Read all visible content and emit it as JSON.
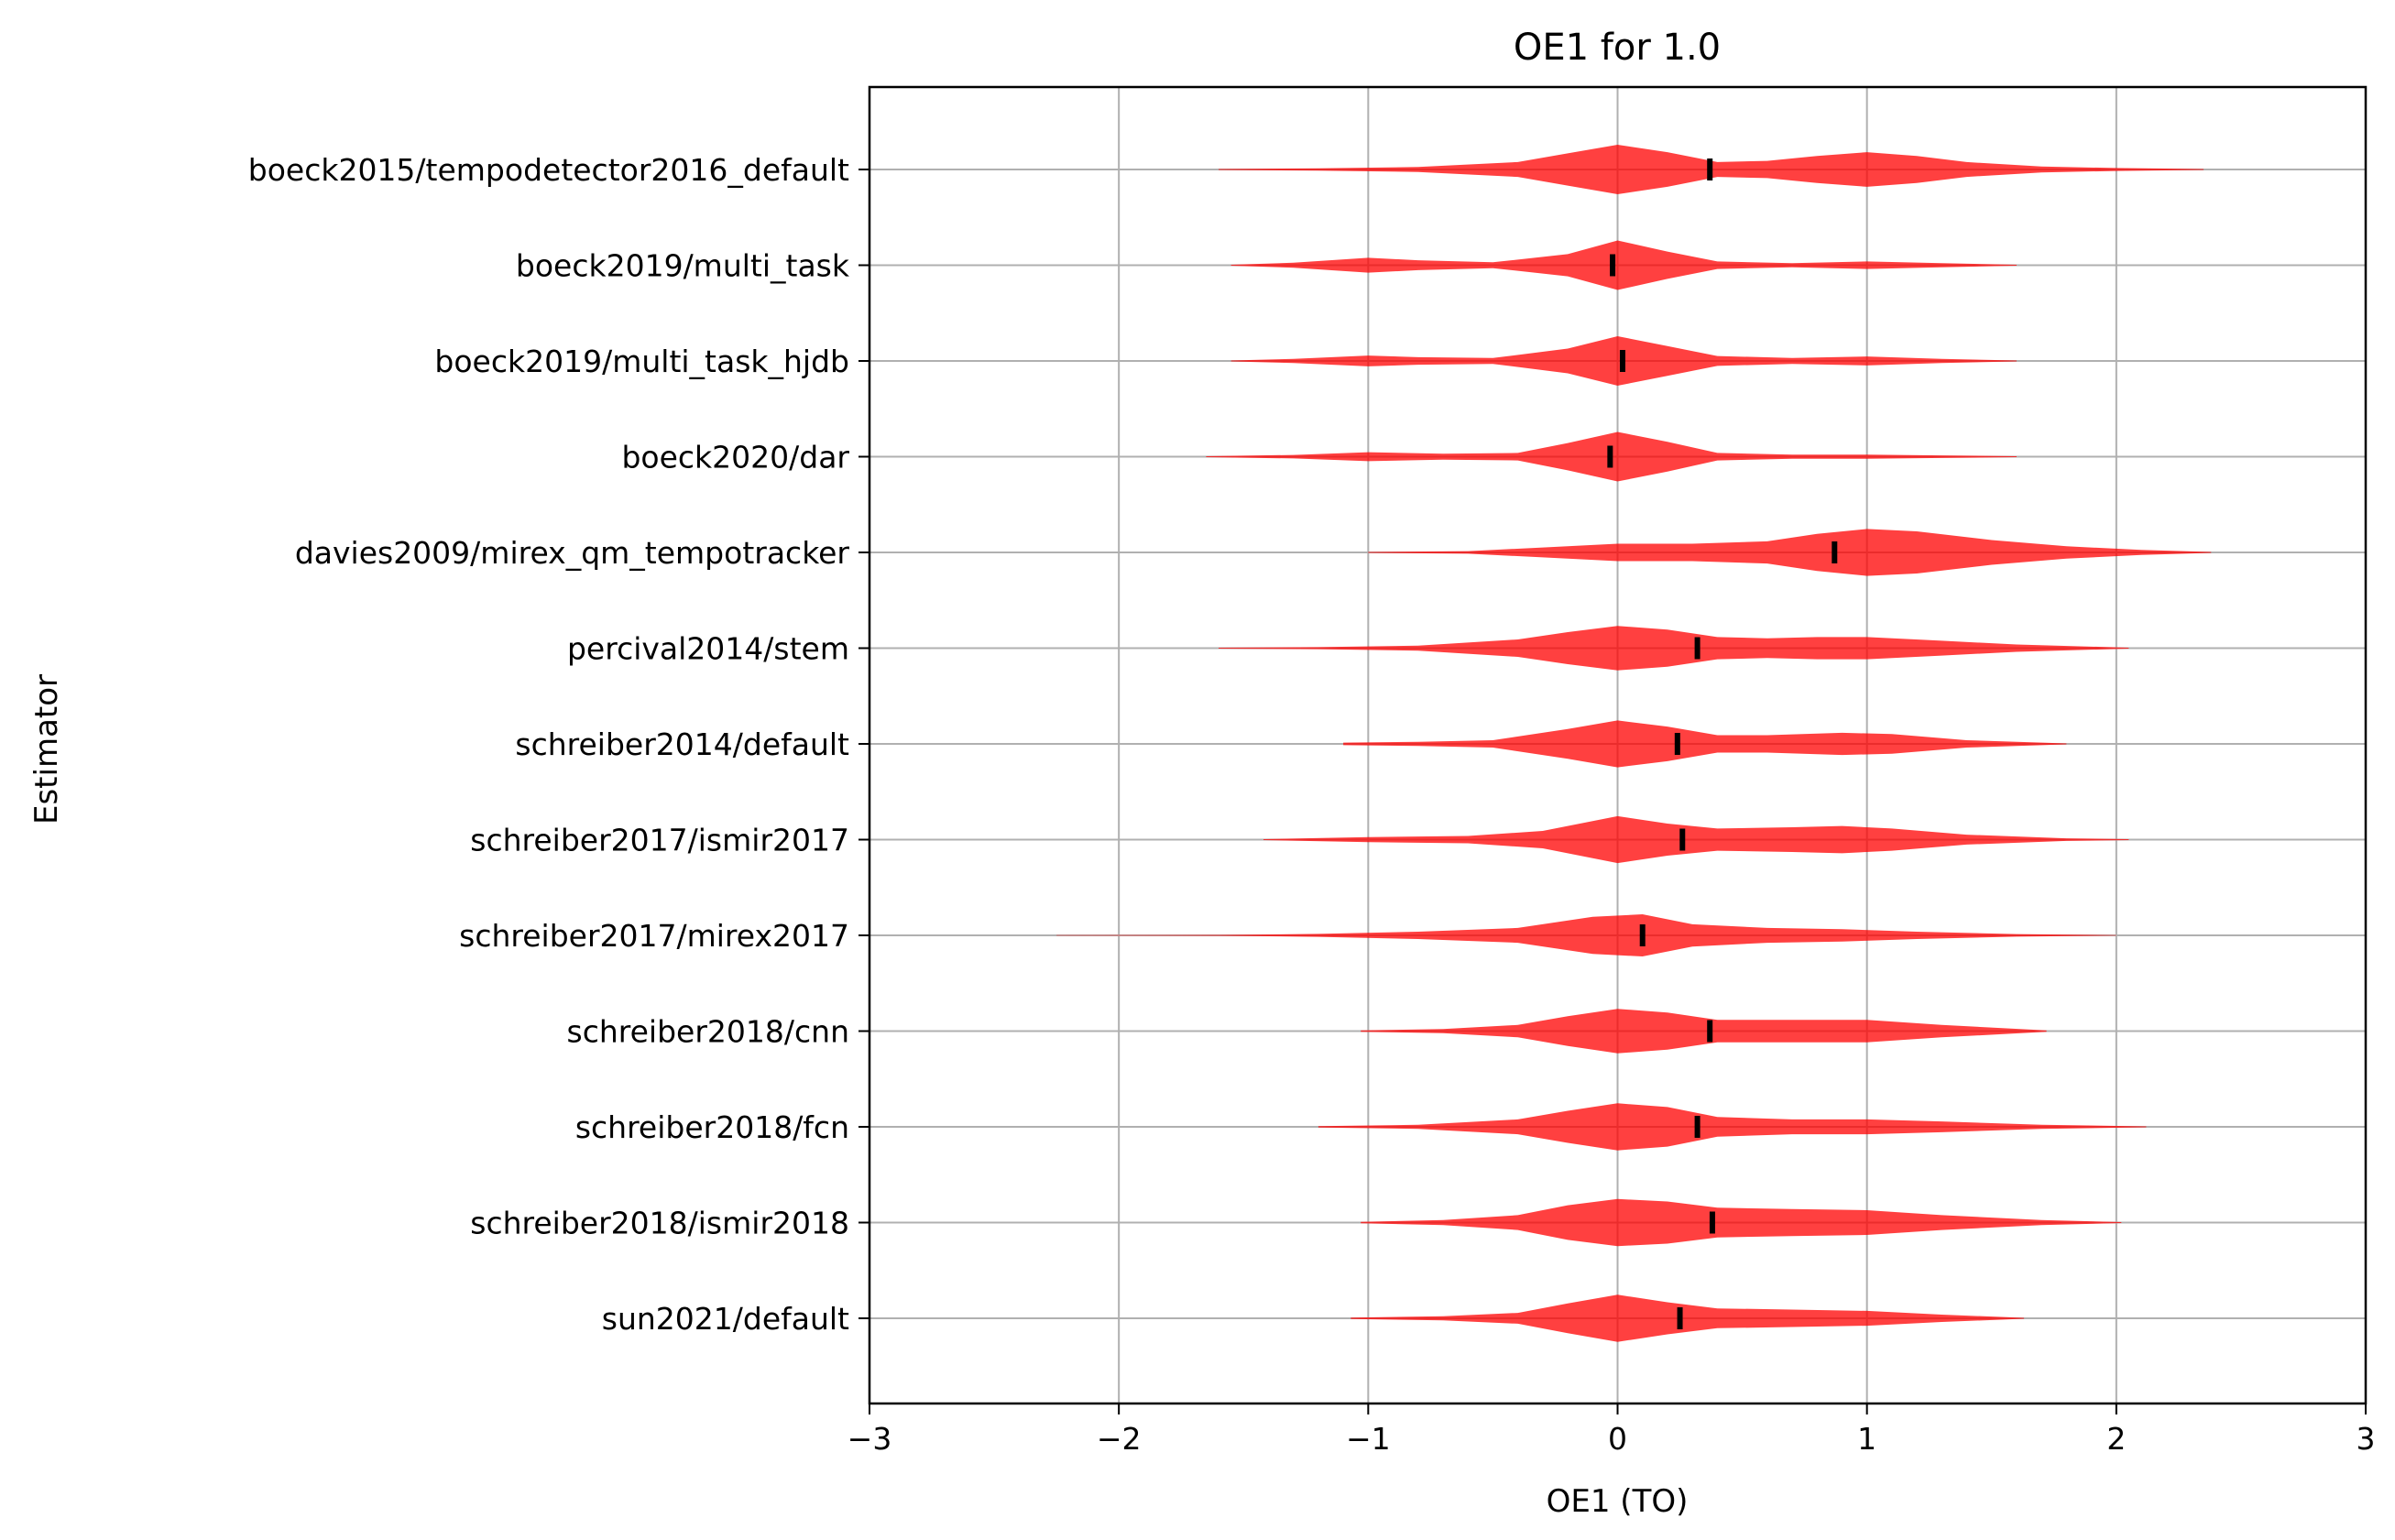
{
  "chart_data": {
    "type": "violin",
    "orientation": "horizontal",
    "title": "OE1 for 1.0",
    "xlabel": "OE1 (TO)",
    "ylabel": "Estimator",
    "xlim": [
      -3,
      3
    ],
    "xticks": [
      -3,
      -2,
      -1,
      0,
      1,
      2,
      3
    ],
    "xtick_labels": [
      "−3",
      "−2",
      "−1",
      "0",
      "1",
      "2",
      "3"
    ],
    "grid": true,
    "violin_color": "#ff0000",
    "median_color": "#000000",
    "categories": [
      "boeck2015/tempodetector2016_default",
      "boeck2019/multi_task",
      "boeck2019/multi_task_hjdb",
      "boeck2020/dar",
      "davies2009/mirex_qm_tempotracker",
      "percival2014/stem",
      "schreiber2014/default",
      "schreiber2017/ismir2017",
      "schreiber2017/mirex2017",
      "schreiber2018/cnn",
      "schreiber2018/fcn",
      "schreiber2018/ismir2018",
      "sun2021/default"
    ],
    "series": [
      {
        "min": -1.6,
        "max": 2.35,
        "median": 0.37,
        "density": [
          [
            -1.6,
            0.02
          ],
          [
            -1.2,
            0.05
          ],
          [
            -0.8,
            0.1
          ],
          [
            -0.4,
            0.3
          ],
          [
            -0.2,
            0.65
          ],
          [
            0,
            1.0
          ],
          [
            0.2,
            0.7
          ],
          [
            0.4,
            0.3
          ],
          [
            0.6,
            0.35
          ],
          [
            0.8,
            0.55
          ],
          [
            1.0,
            0.7
          ],
          [
            1.2,
            0.55
          ],
          [
            1.4,
            0.3
          ],
          [
            1.7,
            0.12
          ],
          [
            2.0,
            0.06
          ],
          [
            2.35,
            0.02
          ]
        ]
      },
      {
        "min": -1.55,
        "max": 1.6,
        "median": -0.02,
        "density": [
          [
            -1.55,
            0.02
          ],
          [
            -1.3,
            0.1
          ],
          [
            -1.0,
            0.3
          ],
          [
            -0.8,
            0.2
          ],
          [
            -0.5,
            0.12
          ],
          [
            -0.2,
            0.45
          ],
          [
            0,
            1.0
          ],
          [
            0.2,
            0.55
          ],
          [
            0.4,
            0.15
          ],
          [
            0.7,
            0.08
          ],
          [
            1.0,
            0.15
          ],
          [
            1.3,
            0.08
          ],
          [
            1.6,
            0.02
          ]
        ]
      },
      {
        "min": -1.55,
        "max": 1.6,
        "median": 0.02,
        "density": [
          [
            -1.55,
            0.02
          ],
          [
            -1.3,
            0.08
          ],
          [
            -1.0,
            0.22
          ],
          [
            -0.8,
            0.15
          ],
          [
            -0.5,
            0.12
          ],
          [
            -0.2,
            0.5
          ],
          [
            0,
            1.0
          ],
          [
            0.2,
            0.6
          ],
          [
            0.4,
            0.2
          ],
          [
            0.7,
            0.12
          ],
          [
            1.0,
            0.18
          ],
          [
            1.3,
            0.08
          ],
          [
            1.6,
            0.02
          ]
        ]
      },
      {
        "min": -1.65,
        "max": 1.6,
        "median": -0.03,
        "density": [
          [
            -1.65,
            0.02
          ],
          [
            -1.3,
            0.07
          ],
          [
            -1.0,
            0.18
          ],
          [
            -0.7,
            0.12
          ],
          [
            -0.4,
            0.15
          ],
          [
            -0.2,
            0.55
          ],
          [
            0,
            1.0
          ],
          [
            0.2,
            0.6
          ],
          [
            0.4,
            0.15
          ],
          [
            0.7,
            0.08
          ],
          [
            1.0,
            0.08
          ],
          [
            1.3,
            0.05
          ],
          [
            1.6,
            0.02
          ]
        ]
      },
      {
        "min": -1.0,
        "max": 2.38,
        "median": 0.87,
        "density": [
          [
            -1.0,
            0.02
          ],
          [
            -0.6,
            0.05
          ],
          [
            -0.3,
            0.2
          ],
          [
            0,
            0.35
          ],
          [
            0.3,
            0.35
          ],
          [
            0.6,
            0.45
          ],
          [
            0.8,
            0.75
          ],
          [
            1.0,
            0.95
          ],
          [
            1.2,
            0.85
          ],
          [
            1.5,
            0.5
          ],
          [
            1.8,
            0.25
          ],
          [
            2.1,
            0.1
          ],
          [
            2.38,
            0.02
          ]
        ]
      },
      {
        "min": -1.6,
        "max": 2.05,
        "median": 0.32,
        "density": [
          [
            -1.6,
            0.02
          ],
          [
            -1.2,
            0.04
          ],
          [
            -0.8,
            0.1
          ],
          [
            -0.4,
            0.35
          ],
          [
            -0.2,
            0.65
          ],
          [
            0,
            0.9
          ],
          [
            0.2,
            0.75
          ],
          [
            0.4,
            0.45
          ],
          [
            0.6,
            0.4
          ],
          [
            0.8,
            0.45
          ],
          [
            1.0,
            0.45
          ],
          [
            1.3,
            0.3
          ],
          [
            1.6,
            0.15
          ],
          [
            2.05,
            0.02
          ]
        ]
      },
      {
        "min": -1.1,
        "max": 1.8,
        "median": 0.24,
        "density": [
          [
            -1.1,
            0.05
          ],
          [
            -0.8,
            0.08
          ],
          [
            -0.5,
            0.15
          ],
          [
            -0.2,
            0.6
          ],
          [
            0,
            0.95
          ],
          [
            0.2,
            0.7
          ],
          [
            0.4,
            0.35
          ],
          [
            0.6,
            0.35
          ],
          [
            0.9,
            0.45
          ],
          [
            1.1,
            0.4
          ],
          [
            1.4,
            0.15
          ],
          [
            1.8,
            0.02
          ]
        ]
      },
      {
        "min": -1.42,
        "max": 2.05,
        "median": 0.26,
        "density": [
          [
            -1.42,
            0.02
          ],
          [
            -1.0,
            0.1
          ],
          [
            -0.6,
            0.15
          ],
          [
            -0.3,
            0.35
          ],
          [
            0,
            0.95
          ],
          [
            0.2,
            0.65
          ],
          [
            0.4,
            0.45
          ],
          [
            0.7,
            0.5
          ],
          [
            0.9,
            0.55
          ],
          [
            1.1,
            0.45
          ],
          [
            1.4,
            0.2
          ],
          [
            1.8,
            0.05
          ],
          [
            2.05,
            0.02
          ]
        ]
      },
      {
        "min": -2.25,
        "max": 2.0,
        "median": 0.1,
        "density": [
          [
            -2.25,
            0.01
          ],
          [
            -1.6,
            0.02
          ],
          [
            -1.2,
            0.06
          ],
          [
            -0.8,
            0.15
          ],
          [
            -0.4,
            0.3
          ],
          [
            -0.1,
            0.75
          ],
          [
            0.1,
            0.85
          ],
          [
            0.3,
            0.45
          ],
          [
            0.6,
            0.3
          ],
          [
            0.9,
            0.25
          ],
          [
            1.2,
            0.15
          ],
          [
            1.6,
            0.05
          ],
          [
            2.0,
            0.01
          ]
        ]
      },
      {
        "min": -1.03,
        "max": 1.72,
        "median": 0.37,
        "density": [
          [
            -1.03,
            0.03
          ],
          [
            -0.7,
            0.08
          ],
          [
            -0.4,
            0.25
          ],
          [
            -0.2,
            0.6
          ],
          [
            0,
            0.9
          ],
          [
            0.2,
            0.75
          ],
          [
            0.4,
            0.45
          ],
          [
            0.7,
            0.45
          ],
          [
            1.0,
            0.45
          ],
          [
            1.3,
            0.25
          ],
          [
            1.72,
            0.03
          ]
        ]
      },
      {
        "min": -1.2,
        "max": 2.12,
        "median": 0.32,
        "density": [
          [
            -1.2,
            0.03
          ],
          [
            -0.8,
            0.08
          ],
          [
            -0.4,
            0.3
          ],
          [
            -0.2,
            0.65
          ],
          [
            0,
            0.95
          ],
          [
            0.2,
            0.8
          ],
          [
            0.4,
            0.4
          ],
          [
            0.7,
            0.3
          ],
          [
            1.0,
            0.3
          ],
          [
            1.3,
            0.22
          ],
          [
            1.7,
            0.08
          ],
          [
            2.12,
            0.02
          ]
        ]
      },
      {
        "min": -1.03,
        "max": 2.02,
        "median": 0.38,
        "density": [
          [
            -1.03,
            0.03
          ],
          [
            -0.7,
            0.1
          ],
          [
            -0.4,
            0.3
          ],
          [
            -0.2,
            0.7
          ],
          [
            0,
            0.95
          ],
          [
            0.2,
            0.85
          ],
          [
            0.4,
            0.6
          ],
          [
            0.7,
            0.55
          ],
          [
            1.0,
            0.5
          ],
          [
            1.3,
            0.3
          ],
          [
            1.7,
            0.1
          ],
          [
            2.02,
            0.02
          ]
        ]
      },
      {
        "min": -1.07,
        "max": 1.63,
        "median": 0.25,
        "density": [
          [
            -1.07,
            0.03
          ],
          [
            -0.7,
            0.08
          ],
          [
            -0.4,
            0.22
          ],
          [
            -0.2,
            0.6
          ],
          [
            0,
            0.95
          ],
          [
            0.2,
            0.65
          ],
          [
            0.4,
            0.4
          ],
          [
            0.7,
            0.35
          ],
          [
            1.0,
            0.3
          ],
          [
            1.3,
            0.15
          ],
          [
            1.63,
            0.02
          ]
        ]
      }
    ]
  }
}
